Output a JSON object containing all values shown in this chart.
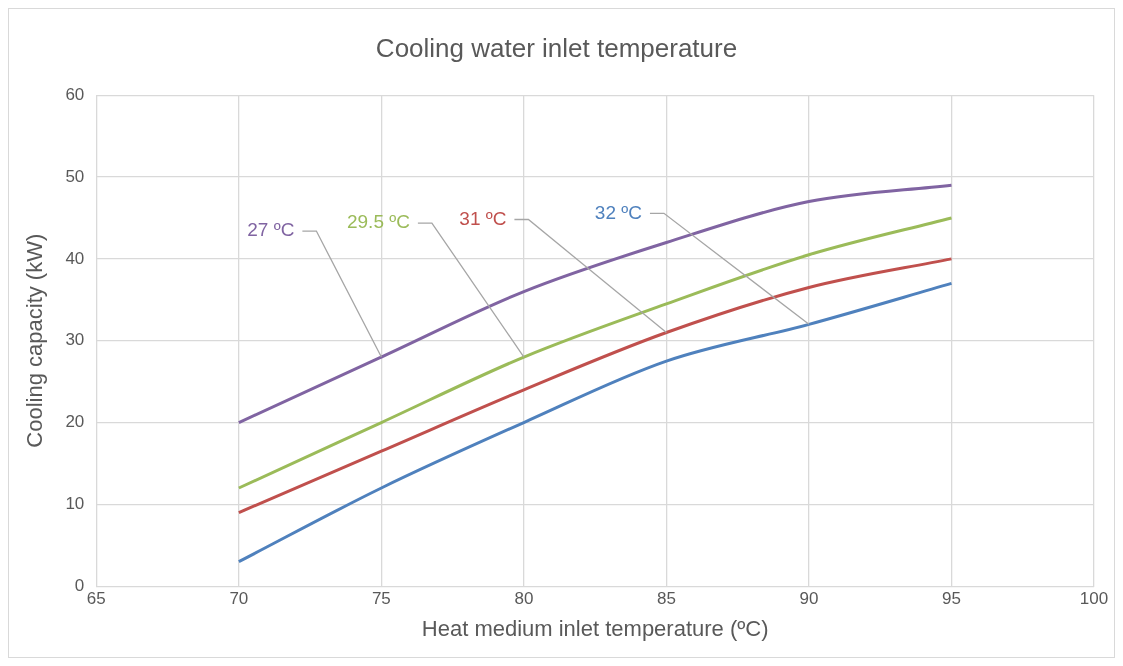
{
  "chart_data": {
    "type": "line",
    "title": "Cooling water inlet temperature",
    "xlabel": "Heat medium inlet temperature (ºC)",
    "ylabel": "Cooling capacity (kW)",
    "x": [
      70,
      75,
      80,
      85,
      90,
      95
    ],
    "series": [
      {
        "name": "27 ºC",
        "color": "#8064a2",
        "values": [
          20,
          28,
          36,
          42,
          47,
          49
        ]
      },
      {
        "name": "29.5 ºC",
        "color": "#9bbb59",
        "values": [
          12,
          20,
          28,
          34.5,
          40.5,
          45
        ]
      },
      {
        "name": "31 ºC",
        "color": "#c0504d",
        "values": [
          9,
          16.5,
          24,
          31,
          36.5,
          40
        ]
      },
      {
        "name": "32 ºC",
        "color": "#4f81bd",
        "values": [
          3,
          12,
          20,
          27.5,
          32,
          37
        ]
      }
    ],
    "xlim": [
      65,
      100
    ],
    "xticks": [
      65,
      70,
      75,
      80,
      85,
      90,
      95,
      100
    ],
    "ylim": [
      0,
      60
    ],
    "yticks": [
      0,
      10,
      20,
      30,
      40,
      50,
      60
    ],
    "grid": true,
    "legend": false,
    "marker": "none",
    "line_style": "solid"
  }
}
